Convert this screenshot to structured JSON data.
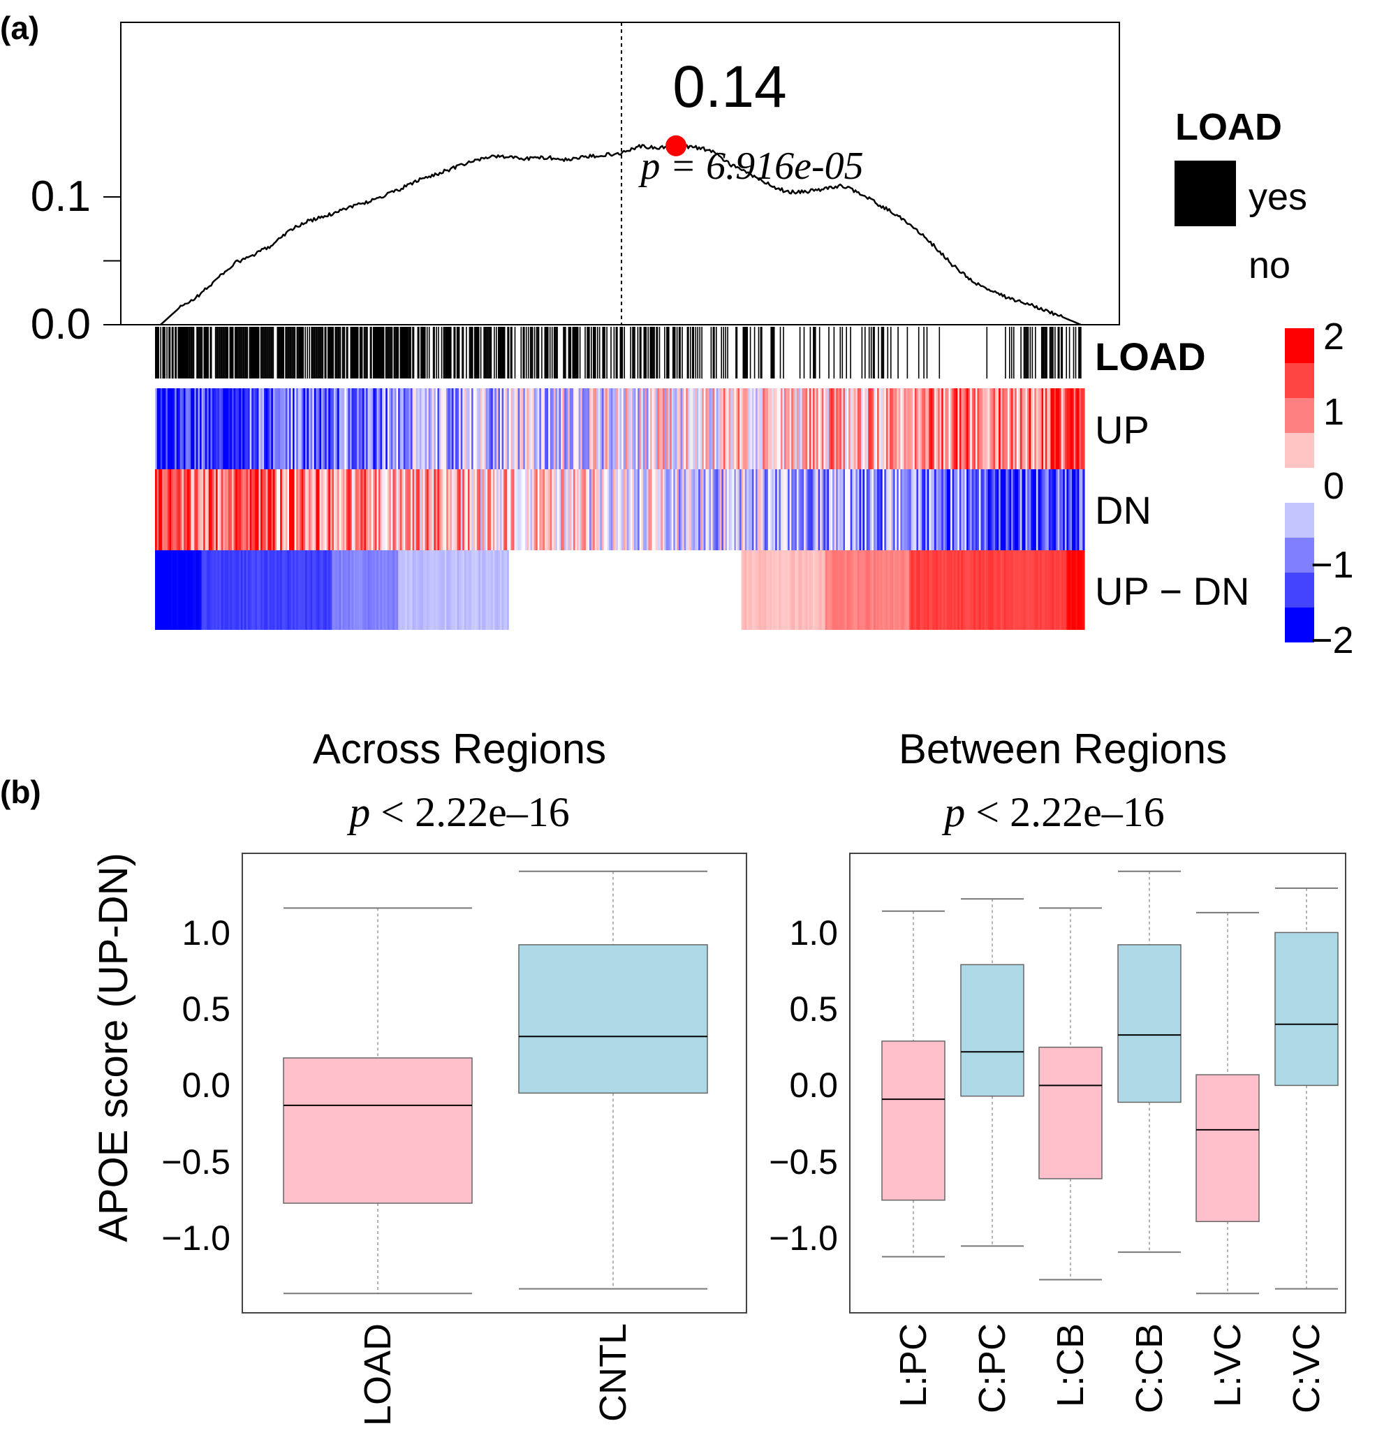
{
  "panel_a": {
    "label": "(a)",
    "enrichment": {
      "y_ticks": [
        {
          "value": 0.0,
          "label": "0.0"
        },
        {
          "value": 0.05,
          "label": ""
        },
        {
          "value": 0.1,
          "label": "0.1"
        }
      ],
      "peak_label": "0.14",
      "p_prefix": "p",
      "p_rest": " = 6.916e-05"
    },
    "legend": {
      "title": "LOAD",
      "yes": "yes",
      "no": "no"
    },
    "row_labels": {
      "load": "LOAD",
      "up": "UP",
      "dn": "DN",
      "updn": "UP − DN"
    },
    "colorbar": {
      "ticks": [
        "2",
        "1",
        "0",
        "−1",
        "−2"
      ]
    }
  },
  "panel_b": {
    "label": "(b)",
    "ylabel": "APOE score (UP-DN)",
    "left": {
      "title": "Across Regions",
      "p_prefix": "p",
      "p_rest": " < 2.22e–16"
    },
    "right": {
      "title": "Between Regions",
      "p_prefix": "p",
      "p_rest": " < 2.22e–16"
    },
    "y_tick_labels": [
      "1.0",
      "0.5",
      "0.0",
      "−0.5",
      "−1.0"
    ]
  },
  "colors": {
    "load_box": "#ffc0cb",
    "cntl_box": "#add8e6",
    "peak_dot": "#ff0000",
    "heat_red": "#ff0000",
    "heat_blue": "#0000ff"
  },
  "chart_data": [
    {
      "type": "line",
      "title": "",
      "description_of_axes": "x: rank position (samples ordered), y: running enrichment score",
      "x_range": [
        0,
        1
      ],
      "ylim": [
        0.0,
        0.145
      ],
      "series": [
        {
          "x": [
            0.0,
            0.02,
            0.04,
            0.06,
            0.08,
            0.1,
            0.12,
            0.14,
            0.16,
            0.18,
            0.2,
            0.22,
            0.24,
            0.26,
            0.28,
            0.3,
            0.32,
            0.34,
            0.36,
            0.38,
            0.4,
            0.42,
            0.44,
            0.46,
            0.48,
            0.5,
            0.52,
            0.54,
            0.56,
            0.58,
            0.6,
            0.62,
            0.64,
            0.66,
            0.68,
            0.7,
            0.72,
            0.74,
            0.76,
            0.78,
            0.8,
            0.82,
            0.84,
            0.86,
            0.88,
            0.9,
            0.92,
            0.94,
            0.96,
            0.98,
            1.0
          ],
          "y": [
            0.0,
            0.013,
            0.022,
            0.035,
            0.048,
            0.054,
            0.062,
            0.074,
            0.081,
            0.085,
            0.091,
            0.095,
            0.1,
            0.106,
            0.113,
            0.118,
            0.123,
            0.128,
            0.132,
            0.131,
            0.13,
            0.131,
            0.129,
            0.131,
            0.133,
            0.134,
            0.14,
            0.138,
            0.14,
            0.139,
            0.136,
            0.125,
            0.118,
            0.11,
            0.104,
            0.104,
            0.106,
            0.109,
            0.103,
            0.094,
            0.086,
            0.075,
            0.062,
            0.047,
            0.035,
            0.027,
            0.021,
            0.017,
            0.012,
            0.006,
            0.0
          ]
        }
      ],
      "peak": {
        "x": 0.56,
        "y": 0.14,
        "label": "0.14"
      },
      "dashed_line_x": 0.5,
      "p_value": "p = 6.916e-05"
    },
    {
      "type": "heatmap",
      "rows": [
        "LOAD",
        "UP",
        "DN",
        "UP − DN"
      ],
      "color_range": [
        -2,
        2
      ],
      "colorbar_ticks": [
        2,
        1,
        0,
        -1,
        -2
      ],
      "updn_segments": [
        {
          "from": 0.0,
          "to": 0.05,
          "value": -2.0
        },
        {
          "from": 0.05,
          "to": 0.19,
          "value": -1.5
        },
        {
          "from": 0.19,
          "to": 0.26,
          "value": -1.0
        },
        {
          "from": 0.26,
          "to": 0.38,
          "value": -0.5
        },
        {
          "from": 0.38,
          "to": 0.63,
          "value": 0.0
        },
        {
          "from": 0.63,
          "to": 0.72,
          "value": 0.5
        },
        {
          "from": 0.72,
          "to": 0.81,
          "value": 1.0
        },
        {
          "from": 0.81,
          "to": 0.98,
          "value": 1.5
        },
        {
          "from": 0.98,
          "to": 1.0,
          "value": 2.0
        }
      ]
    },
    {
      "type": "box",
      "title": "Across Regions",
      "subtitle": "p < 2.22e–16",
      "ylabel": "APOE score (UP-DN)",
      "ylim": [
        -1.5,
        1.48
      ],
      "categories": [
        "LOAD",
        "CNTL"
      ],
      "boxes": [
        {
          "name": "LOAD",
          "min": -1.38,
          "q1": -0.79,
          "median": -0.15,
          "q3": 0.16,
          "max": 1.14,
          "fill": "#ffc0cb"
        },
        {
          "name": "CNTL",
          "min": -1.35,
          "q1": -0.07,
          "median": 0.3,
          "q3": 0.9,
          "max": 1.38,
          "fill": "#add8e6"
        }
      ]
    },
    {
      "type": "box",
      "title": "Between Regions",
      "subtitle": "p < 2.22e–16",
      "ylim": [
        -1.5,
        1.48
      ],
      "categories": [
        "L:PC",
        "C:PC",
        "L:CB",
        "C:CB",
        "L:VC",
        "C:VC"
      ],
      "boxes": [
        {
          "name": "L:PC",
          "min": -1.14,
          "q1": -0.77,
          "median": -0.11,
          "q3": 0.27,
          "max": 1.12,
          "fill": "#ffc0cb"
        },
        {
          "name": "C:PC",
          "min": -1.07,
          "q1": -0.09,
          "median": 0.2,
          "q3": 0.77,
          "max": 1.2,
          "fill": "#add8e6"
        },
        {
          "name": "L:CB",
          "min": -1.29,
          "q1": -0.63,
          "median": -0.02,
          "q3": 0.23,
          "max": 1.14,
          "fill": "#ffc0cb"
        },
        {
          "name": "C:CB",
          "min": -1.11,
          "q1": -0.13,
          "median": 0.31,
          "q3": 0.9,
          "max": 1.38,
          "fill": "#add8e6"
        },
        {
          "name": "L:VC",
          "min": -1.38,
          "q1": -0.91,
          "median": -0.31,
          "q3": 0.05,
          "max": 1.11,
          "fill": "#ffc0cb"
        },
        {
          "name": "C:VC",
          "min": -1.35,
          "q1": -0.02,
          "median": 0.38,
          "q3": 0.98,
          "max": 1.27,
          "fill": "#add8e6"
        }
      ]
    }
  ]
}
